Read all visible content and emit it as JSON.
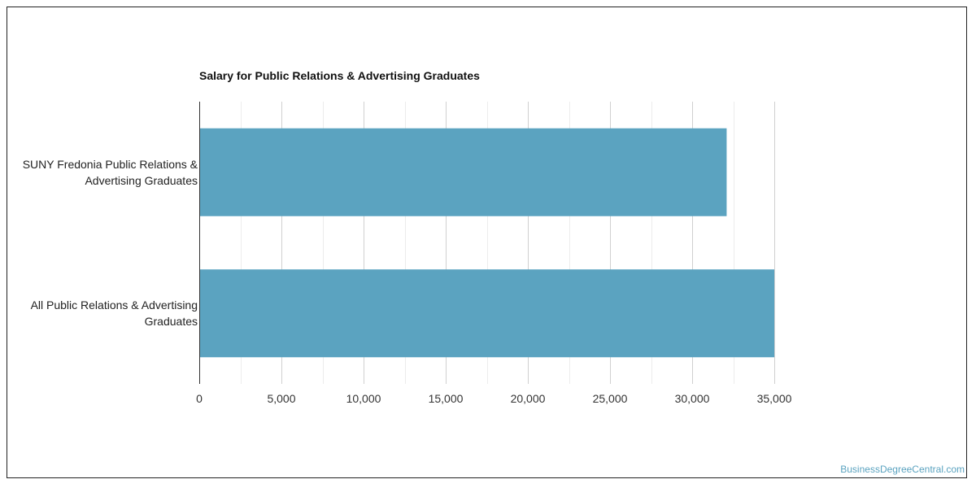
{
  "chart_data": {
    "type": "bar",
    "orientation": "horizontal",
    "title": "Salary for Public Relations & Advertising Graduates",
    "categories": [
      [
        "SUNY Fredonia Public Relations &",
        "Advertising Graduates"
      ],
      [
        "All Public Relations & Advertising",
        "Graduates"
      ]
    ],
    "values": [
      32100,
      35000
    ],
    "xlim": [
      0,
      35000
    ],
    "x_ticks": [
      "0",
      "5,000",
      "10,000",
      "15,000",
      "20,000",
      "25,000",
      "30,000",
      "35,000"
    ],
    "grid": true,
    "bar_color": "#5ba3c0"
  },
  "credit": "BusinessDegreeCentral.com"
}
